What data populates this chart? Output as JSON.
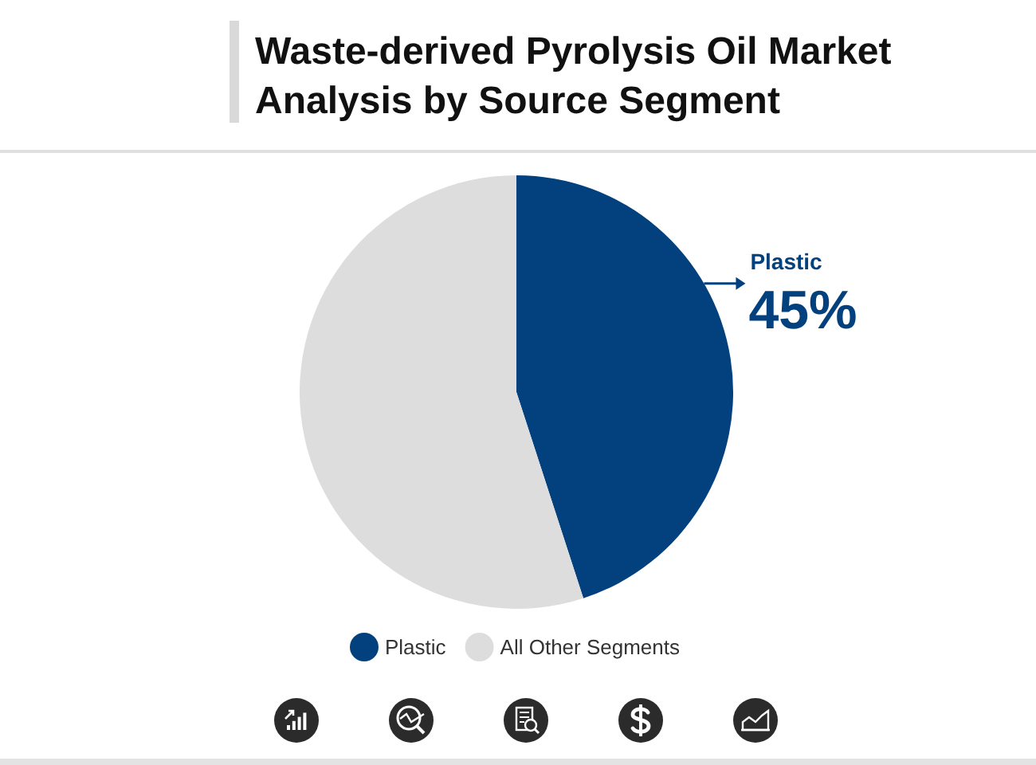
{
  "chart_data": {
    "type": "pie",
    "title": "Waste-derived Pyrolysis Oil Market Analysis by Source Segment",
    "categories": [
      "Plastic",
      "All Other Segments"
    ],
    "values": [
      45,
      55
    ],
    "colors": [
      "#03417e",
      "#dddddd"
    ],
    "value_labels": [
      "45%",
      null
    ],
    "legend": "bottom"
  }
}
